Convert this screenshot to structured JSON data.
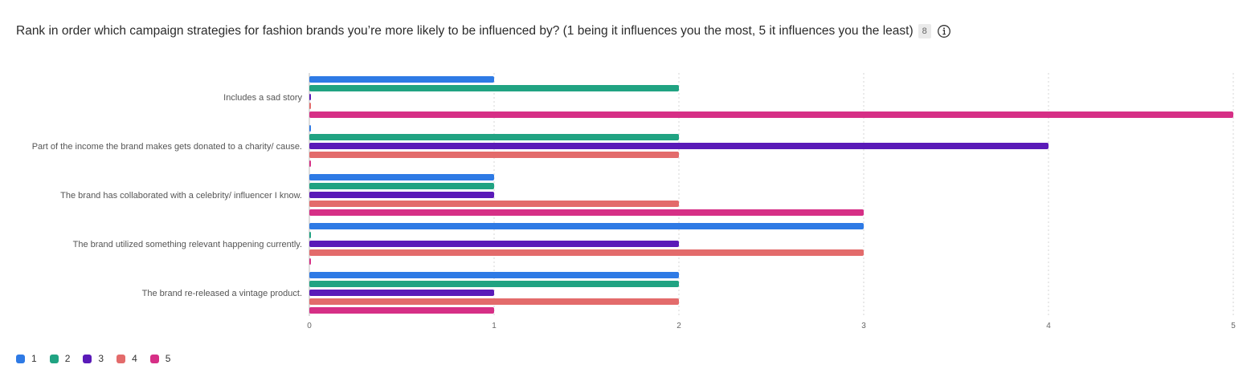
{
  "header": {
    "question": "Rank in order which campaign strategies for fashion brands you’re more likely to be influenced by? (1 being it influences you the most, 5 it influences you the least)",
    "response_count": "8",
    "info_icon": "info-circle-icon"
  },
  "chart_data": {
    "type": "bar",
    "orientation": "horizontal",
    "categories": [
      "Includes a sad story",
      "Part of the income the brand makes gets donated to a charity/ cause.",
      "The brand has collaborated with a celebrity/ influencer I know.",
      "The brand utilized something relevant happening currently.",
      "The brand re-released a vintage product."
    ],
    "series": [
      {
        "name": "1",
        "color": "#2e7ae5",
        "values": [
          1,
          0,
          1,
          3,
          2
        ]
      },
      {
        "name": "2",
        "color": "#20a382",
        "values": [
          2,
          2,
          1,
          0,
          2
        ]
      },
      {
        "name": "3",
        "color": "#5a1ab8",
        "values": [
          0,
          4,
          1,
          2,
          1
        ]
      },
      {
        "name": "4",
        "color": "#e36b6b",
        "values": [
          0,
          2,
          2,
          3,
          2
        ]
      },
      {
        "name": "5",
        "color": "#d62f86",
        "values": [
          5,
          0,
          3,
          0,
          1
        ]
      }
    ],
    "xlim": [
      0,
      5
    ],
    "xticks": [
      "0",
      "1",
      "2",
      "3",
      "4",
      "5"
    ],
    "grid": "vertical dotted",
    "legend_position": "bottom-left",
    "title": "",
    "xlabel": "",
    "ylabel": ""
  }
}
